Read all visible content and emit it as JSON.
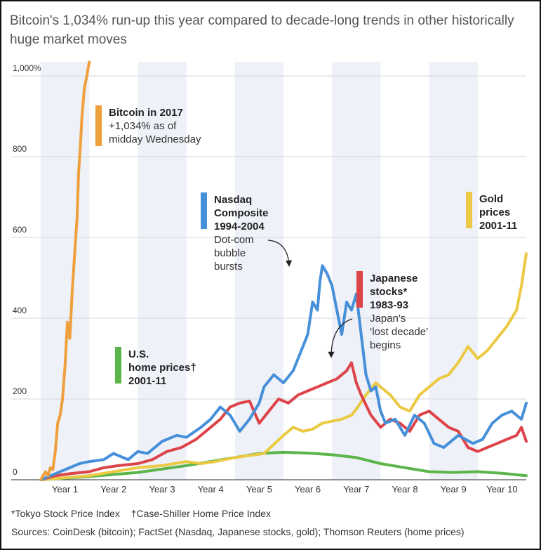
{
  "title": "Bitcoin's 1,034% run-up this year compared to decade-long trends in other historically huge market moves",
  "footnotes": [
    "*Tokyo Stock Price Index",
    "†Case-Shiller Home Price Index"
  ],
  "sources": "Sources: CoinDesk (bitcoin); FactSet (Nasdaq, Japanese stocks, gold); Thomson Reuters (home prices)",
  "chart_data": {
    "type": "line",
    "title": "Bitcoin's 1,034% run-up this year compared to decade-long trends in other historically huge market moves",
    "xlabel": "",
    "ylabel": "",
    "xlim": [
      0,
      10
    ],
    "ylim": [
      0,
      1000
    ],
    "x_tick_labels": [
      "Year 1",
      "Year 2",
      "Year 3",
      "Year 4",
      "Year 5",
      "Year 6",
      "Year 7",
      "Year 8",
      "Year 9",
      "Year 10"
    ],
    "y_ticks": [
      {
        "value": 0,
        "label": "0"
      },
      {
        "value": 200,
        "label": "200"
      },
      {
        "value": 400,
        "label": "400"
      },
      {
        "value": 600,
        "label": "600"
      },
      {
        "value": 800,
        "label": "800"
      },
      {
        "value": 1000,
        "label": "1,000%"
      }
    ],
    "grid": true,
    "alternating_year_bands": true,
    "colors": {
      "band": "#eef1f8",
      "grid": "#d4d7dd",
      "axis": "#555555",
      "bitcoin": "#ef9f3c",
      "nasdaq": "#4690d9",
      "japan": "#dd4449",
      "gold": "#ebc942",
      "home": "#5cb54a"
    },
    "series": [
      {
        "key": "bitcoin",
        "name": "Bitcoin in 2017",
        "x": [
          0,
          0.1,
          0.15,
          0.2,
          0.25,
          0.3,
          0.35,
          0.4,
          0.45,
          0.5,
          0.55,
          0.6,
          0.65,
          0.7,
          0.75,
          0.78,
          0.82,
          0.85,
          0.9,
          0.95,
          1.0
        ],
        "y": [
          0,
          20,
          10,
          30,
          25,
          70,
          140,
          160,
          200,
          280,
          390,
          350,
          470,
          560,
          650,
          760,
          830,
          900,
          970,
          1000,
          1034
        ]
      },
      {
        "key": "nasdaq",
        "name": "Nasdaq Composite 1994-2004",
        "x": [
          0,
          0.2,
          0.5,
          0.8,
          1.0,
          1.3,
          1.5,
          1.8,
          2.0,
          2.2,
          2.5,
          2.8,
          3.0,
          3.3,
          3.5,
          3.7,
          3.9,
          4.1,
          4.3,
          4.5,
          4.6,
          4.8,
          5.0,
          5.2,
          5.3,
          5.5,
          5.6,
          5.7,
          5.75,
          5.8,
          5.9,
          6.0,
          6.1,
          6.2,
          6.3,
          6.4,
          6.5,
          6.6,
          6.7,
          6.8,
          6.9,
          7.0,
          7.1,
          7.3,
          7.5,
          7.7,
          7.9,
          8.1,
          8.3,
          8.6,
          8.9,
          9.1,
          9.3,
          9.5,
          9.7,
          9.9,
          10.0
        ],
        "y": [
          0,
          10,
          25,
          40,
          45,
          50,
          65,
          50,
          70,
          65,
          95,
          110,
          105,
          130,
          150,
          180,
          160,
          120,
          150,
          190,
          230,
          260,
          240,
          270,
          300,
          360,
          440,
          420,
          490,
          530,
          510,
          480,
          420,
          360,
          440,
          420,
          460,
          360,
          260,
          220,
          230,
          170,
          140,
          150,
          110,
          160,
          140,
          90,
          80,
          110,
          90,
          100,
          140,
          160,
          170,
          150,
          190
        ]
      },
      {
        "key": "japan",
        "name": "Japanese stocks* 1983-93",
        "x": [
          0,
          0.3,
          0.6,
          1.0,
          1.3,
          1.6,
          2.0,
          2.3,
          2.6,
          2.9,
          3.2,
          3.5,
          3.7,
          3.9,
          4.1,
          4.3,
          4.5,
          4.7,
          4.9,
          5.1,
          5.3,
          5.5,
          5.7,
          5.9,
          6.1,
          6.3,
          6.4,
          6.5,
          6.6,
          6.8,
          7.0,
          7.2,
          7.4,
          7.6,
          7.8,
          8.0,
          8.2,
          8.4,
          8.6,
          8.8,
          9.0,
          9.2,
          9.4,
          9.6,
          9.8,
          9.9,
          10.0
        ],
        "y": [
          0,
          10,
          15,
          20,
          30,
          35,
          40,
          50,
          70,
          80,
          100,
          130,
          150,
          180,
          190,
          195,
          140,
          170,
          200,
          190,
          210,
          220,
          230,
          240,
          250,
          270,
          290,
          240,
          210,
          160,
          130,
          150,
          140,
          120,
          160,
          170,
          150,
          130,
          120,
          80,
          70,
          80,
          90,
          100,
          110,
          130,
          95
        ]
      },
      {
        "key": "gold",
        "name": "Gold prices 2001-11",
        "x": [
          0,
          0.5,
          1.0,
          1.5,
          2.0,
          2.5,
          3.0,
          3.3,
          3.6,
          4.0,
          4.3,
          4.6,
          5.0,
          5.2,
          5.4,
          5.6,
          5.8,
          6.0,
          6.2,
          6.4,
          6.5,
          6.7,
          6.9,
          7.0,
          7.2,
          7.4,
          7.6,
          7.8,
          8.0,
          8.2,
          8.4,
          8.6,
          8.8,
          9.0,
          9.2,
          9.4,
          9.6,
          9.7,
          9.8,
          9.9,
          10.0
        ],
        "y": [
          0,
          5,
          10,
          20,
          30,
          35,
          45,
          40,
          45,
          55,
          60,
          65,
          110,
          130,
          120,
          125,
          140,
          145,
          150,
          160,
          175,
          210,
          240,
          230,
          210,
          180,
          170,
          210,
          230,
          250,
          260,
          290,
          330,
          300,
          320,
          350,
          380,
          400,
          420,
          480,
          560
        ]
      },
      {
        "key": "home",
        "name": "U.S. home prices† 2001-11",
        "x": [
          0,
          1.0,
          2.0,
          3.0,
          4.0,
          4.5,
          5.0,
          5.5,
          6.0,
          6.5,
          7.0,
          7.5,
          8.0,
          8.5,
          9.0,
          9.5,
          10.0
        ],
        "y": [
          0,
          8,
          18,
          35,
          55,
          65,
          68,
          66,
          62,
          55,
          40,
          30,
          20,
          18,
          20,
          16,
          10
        ]
      }
    ],
    "annotations": [
      {
        "series": "bitcoin",
        "lines": [
          {
            "text": "Bitcoin in 2017",
            "bold": true
          },
          {
            "text": "+1,034% as of",
            "bold": false
          },
          {
            "text": "midday Wednesday",
            "bold": false
          }
        ]
      },
      {
        "series": "nasdaq",
        "lines": [
          {
            "text": "Nasdaq",
            "bold": true
          },
          {
            "text": "Composite",
            "bold": true
          },
          {
            "text": "1994-2004",
            "bold": true
          },
          {
            "text": "Dot-com",
            "bold": false
          },
          {
            "text": "bubble",
            "bold": false
          },
          {
            "text": "bursts",
            "bold": false
          }
        ]
      },
      {
        "series": "gold",
        "lines": [
          {
            "text": "Gold",
            "bold": true
          },
          {
            "text": "prices",
            "bold": true
          },
          {
            "text": "2001-11",
            "bold": true
          }
        ]
      },
      {
        "series": "japan",
        "lines": [
          {
            "text": "Japanese",
            "bold": true
          },
          {
            "text": "stocks*",
            "bold": true
          },
          {
            "text": "1983-93",
            "bold": true
          },
          {
            "text": "Japan's",
            "bold": false
          },
          {
            "text": "‘lost decade’",
            "bold": false
          },
          {
            "text": "begins",
            "bold": false
          }
        ]
      },
      {
        "series": "home",
        "lines": [
          {
            "text": "U.S.",
            "bold": true
          },
          {
            "text": "home prices†",
            "bold": true
          },
          {
            "text": "2001-11",
            "bold": true
          }
        ]
      }
    ]
  }
}
